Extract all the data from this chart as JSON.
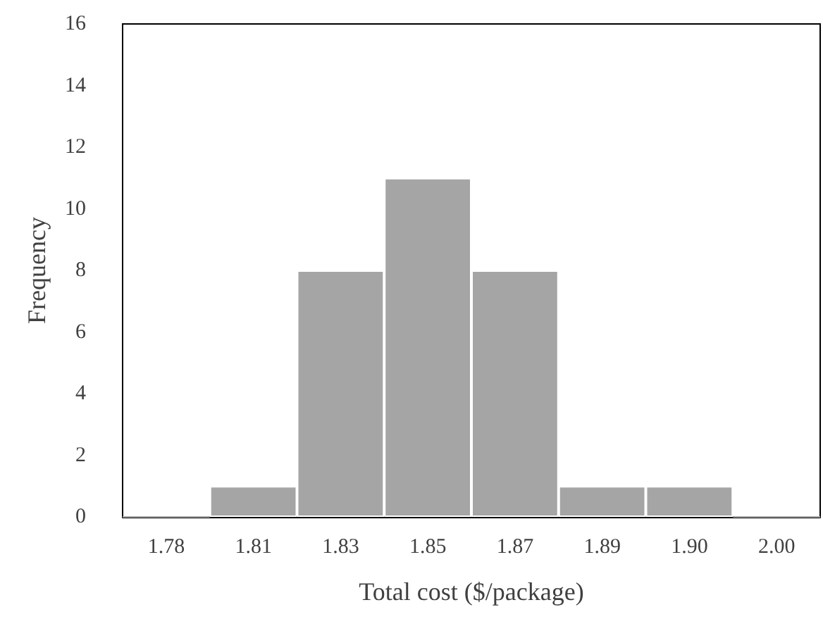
{
  "chart_data": {
    "type": "bar",
    "xlabel": "Total cost ($/package)",
    "ylabel": "Frequency",
    "categories": [
      "1.78",
      "1.81",
      "1.83",
      "1.85",
      "1.87",
      "1.89",
      "1.90",
      "2.00"
    ],
    "values": [
      0,
      1,
      8,
      11,
      8,
      1,
      1,
      0
    ],
    "color": "#a5a5a5",
    "ylim": [
      0,
      16
    ],
    "yticks": [
      0,
      2,
      4,
      6,
      8,
      10,
      12,
      14,
      16
    ]
  }
}
